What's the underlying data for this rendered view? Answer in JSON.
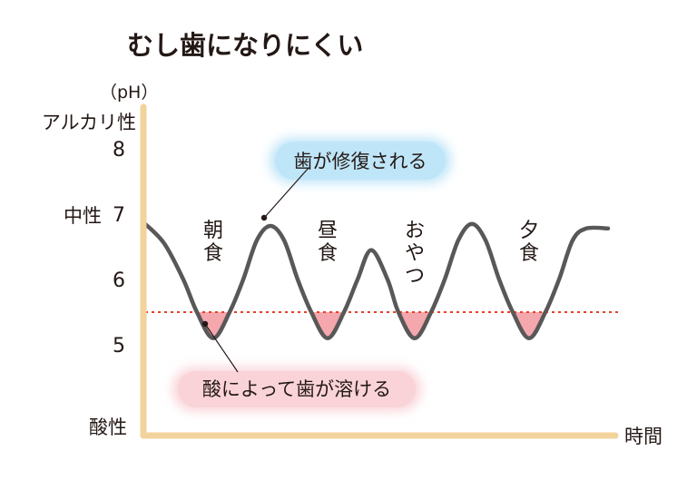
{
  "chart_data": {
    "type": "line",
    "title": "むし歯になりにくい",
    "ylabel": "（pH）",
    "xlabel": "時間",
    "y_tick_labels": [
      "8",
      "7",
      "6",
      "5"
    ],
    "y_ticks": [
      8,
      7,
      6,
      5
    ],
    "y_side_labels": {
      "alkaline": "アルカリ性",
      "neutral": "中性",
      "acidic": "酸性"
    },
    "critical_ph": 5.5,
    "series": [
      {
        "points": [
          [
            0.0,
            6.85
          ],
          [
            0.7,
            6.55
          ],
          [
            1.4,
            6.0
          ],
          [
            1.9,
            5.5
          ],
          [
            2.5,
            5.1
          ],
          [
            3.1,
            5.5
          ],
          [
            3.6,
            6.0
          ],
          [
            4.1,
            6.6
          ],
          [
            4.6,
            6.82
          ],
          [
            5.1,
            6.6
          ],
          [
            5.6,
            6.0
          ],
          [
            6.1,
            5.5
          ],
          [
            6.7,
            5.1
          ],
          [
            7.3,
            5.5
          ],
          [
            7.8,
            6.0
          ],
          [
            8.3,
            6.45
          ],
          [
            8.9,
            6.0
          ],
          [
            9.3,
            5.5
          ],
          [
            9.9,
            5.1
          ],
          [
            10.5,
            5.5
          ],
          [
            11.0,
            6.0
          ],
          [
            11.5,
            6.6
          ],
          [
            12.0,
            6.85
          ],
          [
            12.5,
            6.6
          ],
          [
            13.0,
            6.0
          ],
          [
            13.5,
            5.5
          ],
          [
            14.1,
            5.1
          ],
          [
            14.7,
            5.5
          ],
          [
            15.2,
            6.0
          ],
          [
            15.7,
            6.6
          ],
          [
            16.2,
            6.78
          ],
          [
            17.0,
            6.78
          ]
        ],
        "color": "#595757"
      }
    ],
    "meal_labels": [
      {
        "x": 2.5,
        "y": 6.65,
        "text": "朝食"
      },
      {
        "x": 6.7,
        "y": 6.65,
        "text": "昼食"
      },
      {
        "x": 9.9,
        "y": 6.65,
        "text": "おやつ"
      },
      {
        "x": 14.1,
        "y": 6.65,
        "text": "夕食"
      }
    ],
    "annotations": {
      "repair": "歯が修復される",
      "dissolve": "酸によって歯が溶ける"
    },
    "colors": {
      "axis": "#f2d39b",
      "line": "#595757",
      "threshold": "#e8402a",
      "acid_fill": "#f4a7ad",
      "repair_bubble": "#bfe5f8",
      "dissolve_bubble": "#f9d3d8"
    }
  }
}
